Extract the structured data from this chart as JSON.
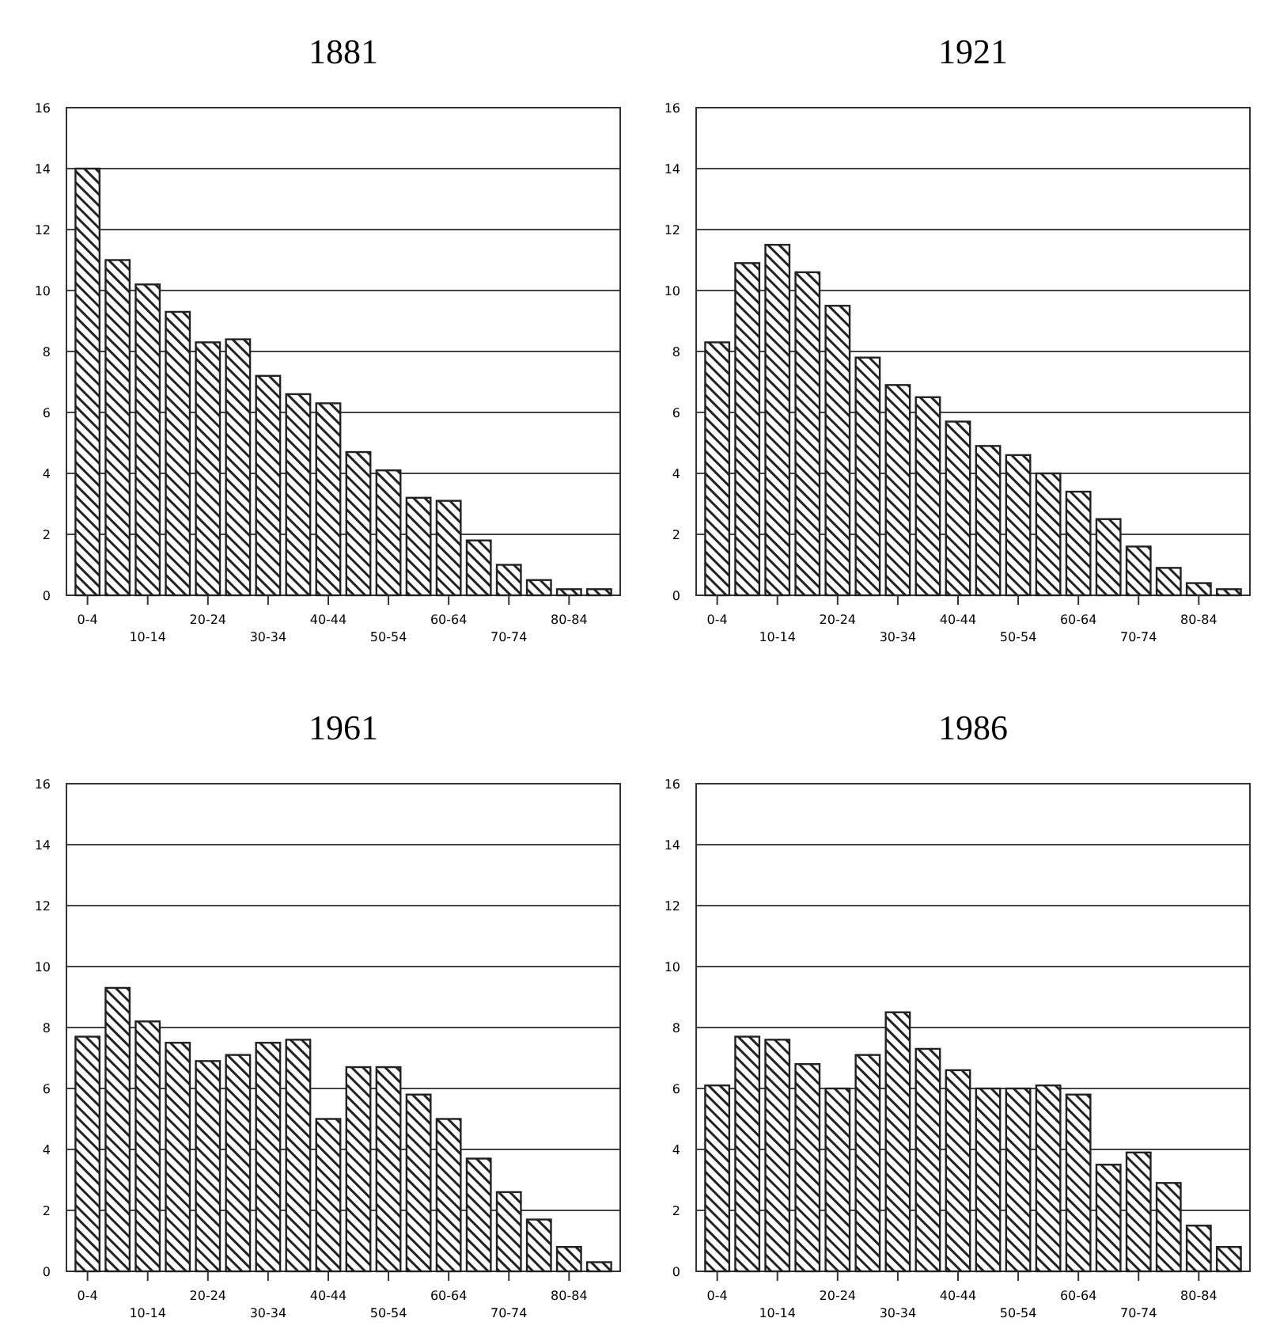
{
  "chart_data": [
    {
      "type": "bar",
      "title": "1881",
      "categories": [
        "0-4",
        null,
        "10-14",
        null,
        "20-24",
        null,
        "30-34",
        null,
        "40-44",
        null,
        "50-54",
        null,
        "60-64",
        null,
        "70-74",
        null,
        "80-84",
        null
      ],
      "values": [
        14,
        11,
        10.2,
        9.3,
        8.3,
        8.4,
        7.2,
        6.6,
        6.3,
        4.7,
        4.1,
        3.2,
        3.1,
        1.8,
        1.0,
        0.5,
        0.2,
        0.2
      ],
      "color": "#222222",
      "ylim": [
        0,
        16
      ],
      "yticks": [
        0,
        2,
        4,
        6,
        8,
        10,
        12,
        14,
        16
      ],
      "grid": "y"
    },
    {
      "type": "bar",
      "title": "1921",
      "categories": [
        "0-4",
        null,
        "10-14",
        null,
        "20-24",
        null,
        "30-34",
        null,
        "40-44",
        null,
        "50-54",
        null,
        "60-64",
        null,
        "70-74",
        null,
        "80-84",
        null
      ],
      "values": [
        8.3,
        10.9,
        11.5,
        10.6,
        9.5,
        7.8,
        6.9,
        6.5,
        5.7,
        4.9,
        4.6,
        4.0,
        3.4,
        2.5,
        1.6,
        0.9,
        0.4,
        0.2
      ],
      "color": "#222222",
      "ylim": [
        0,
        16
      ],
      "yticks": [
        0,
        2,
        4,
        6,
        8,
        10,
        12,
        14,
        16
      ],
      "grid": "y"
    },
    {
      "type": "bar",
      "title": "1961",
      "categories": [
        "0-4",
        null,
        "10-14",
        null,
        "20-24",
        null,
        "30-34",
        null,
        "40-44",
        null,
        "50-54",
        null,
        "60-64",
        null,
        "70-74",
        null,
        "80-84",
        null
      ],
      "values": [
        7.7,
        9.3,
        8.2,
        7.5,
        6.9,
        7.1,
        7.5,
        7.6,
        5.0,
        6.7,
        6.7,
        5.8,
        5.0,
        3.7,
        2.6,
        1.7,
        0.8,
        0.3
      ],
      "color": "#222222",
      "ylim": [
        0,
        16
      ],
      "yticks": [
        0,
        2,
        4,
        6,
        8,
        10,
        12,
        14,
        16
      ],
      "grid": "y"
    },
    {
      "type": "bar",
      "title": "1986",
      "categories": [
        "0-4",
        null,
        "10-14",
        null,
        "20-24",
        null,
        "30-34",
        null,
        "40-44",
        null,
        "50-54",
        null,
        "60-64",
        null,
        "70-74",
        null,
        "80-84",
        null
      ],
      "values": [
        6.1,
        7.7,
        7.6,
        6.8,
        6.0,
        7.1,
        8.5,
        7.3,
        6.6,
        6.0,
        6.0,
        6.1,
        5.8,
        3.5,
        3.9,
        2.9,
        1.5,
        0.8
      ],
      "color": "#222222",
      "ylim": [
        0,
        16
      ],
      "yticks": [
        0,
        2,
        4,
        6,
        8,
        10,
        12,
        14,
        16
      ],
      "grid": "y"
    }
  ]
}
